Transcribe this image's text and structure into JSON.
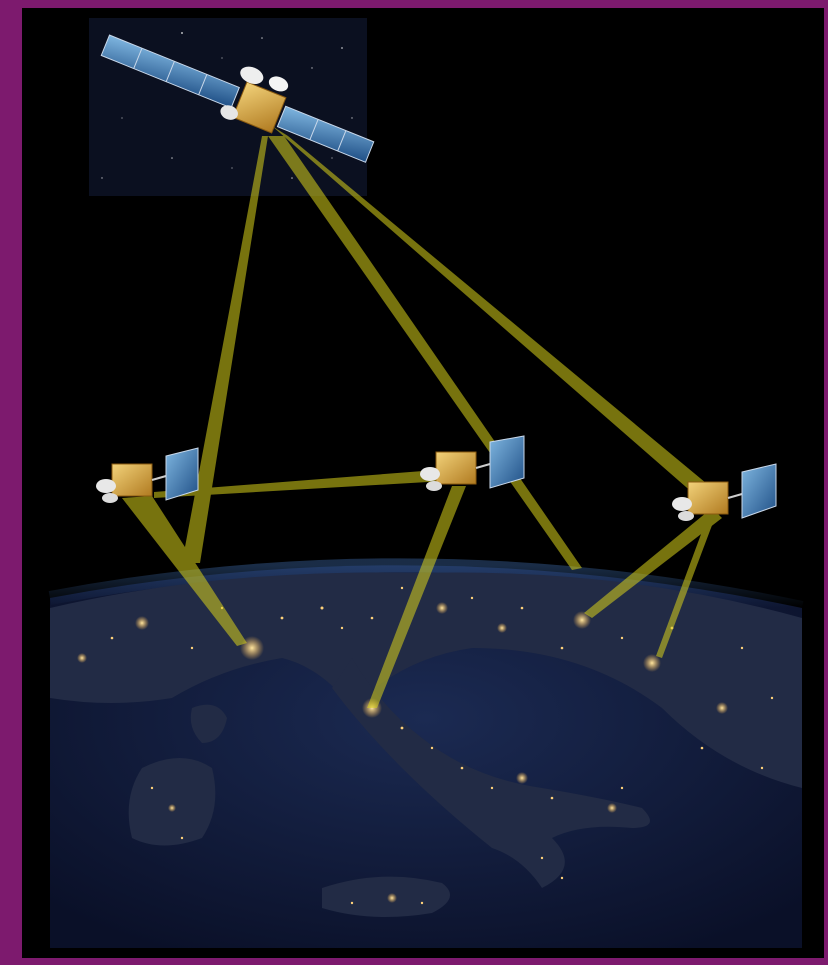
{
  "image": {
    "description_tags": [
      "satellites",
      "earth-at-night",
      "link-beams"
    ],
    "colors": {
      "frame": "#7d1a6e",
      "space": "#000000",
      "ocean": "#0d1633",
      "land": "#1a2440",
      "city_lights": "#ffd27a",
      "beam": "#d9d21a",
      "panel": "#2f6fa8",
      "bus": "#d9a23a"
    },
    "scene": {
      "geo_satellite": "geo-satellite",
      "leo_satellites": [
        "satellite-left",
        "satellite-center",
        "satellite-right"
      ],
      "beams": [
        "geo-to-left",
        "geo-to-center",
        "geo-to-right",
        "left-to-center",
        "left-to-ground",
        "center-to-ground",
        "center-to-ground-east",
        "right-to-ground",
        "right-to-ground-east"
      ]
    }
  }
}
